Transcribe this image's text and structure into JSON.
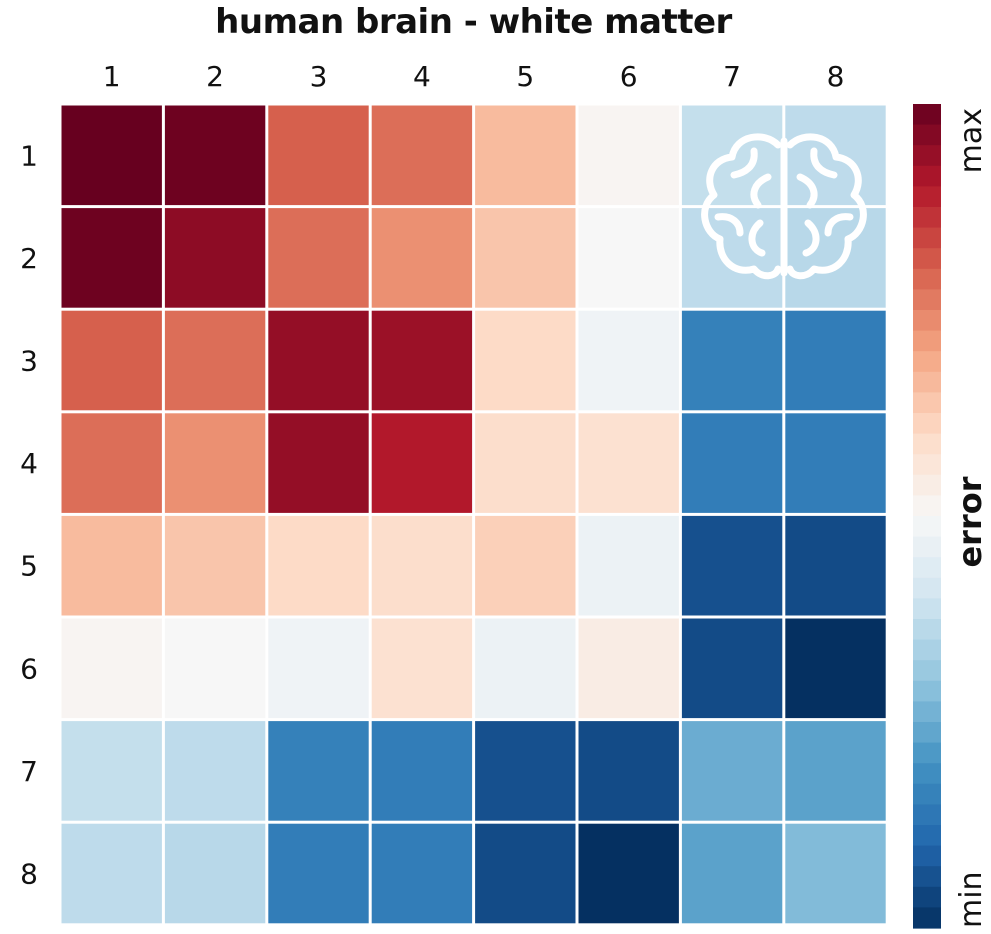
{
  "chart_data": {
    "type": "heatmap",
    "title": "human brain - white matter",
    "x_labels": [
      "1",
      "2",
      "3",
      "4",
      "5",
      "6",
      "7",
      "8"
    ],
    "y_labels": [
      "1",
      "2",
      "3",
      "4",
      "5",
      "6",
      "7",
      "8"
    ],
    "value_range": [
      0,
      1
    ],
    "values": [
      [
        1.0,
        0.99,
        0.8,
        0.78,
        0.66,
        0.51,
        0.38,
        0.37
      ],
      [
        0.99,
        0.95,
        0.78,
        0.73,
        0.64,
        0.5,
        0.37,
        0.36
      ],
      [
        0.8,
        0.78,
        0.94,
        0.93,
        0.6,
        0.48,
        0.16,
        0.15
      ],
      [
        0.78,
        0.73,
        0.94,
        0.9,
        0.59,
        0.58,
        0.15,
        0.15
      ],
      [
        0.66,
        0.64,
        0.6,
        0.59,
        0.62,
        0.47,
        0.06,
        0.05
      ],
      [
        0.51,
        0.5,
        0.48,
        0.58,
        0.47,
        0.54,
        0.05,
        0.0
      ],
      [
        0.38,
        0.37,
        0.16,
        0.15,
        0.06,
        0.05,
        0.25,
        0.23
      ],
      [
        0.37,
        0.36,
        0.15,
        0.15,
        0.05,
        0.0,
        0.23,
        0.28
      ]
    ],
    "colorbar": {
      "label": "error",
      "max_label": "max",
      "min_label": "min",
      "colors": [
        "#053061",
        "#2166ac",
        "#4393c3",
        "#92c5de",
        "#d1e5f0",
        "#f7f7f7",
        "#fddbc7",
        "#f4a582",
        "#d6604d",
        "#b2182b",
        "#67001f"
      ]
    },
    "grid": true,
    "annotation_icon": "brain-icon"
  }
}
